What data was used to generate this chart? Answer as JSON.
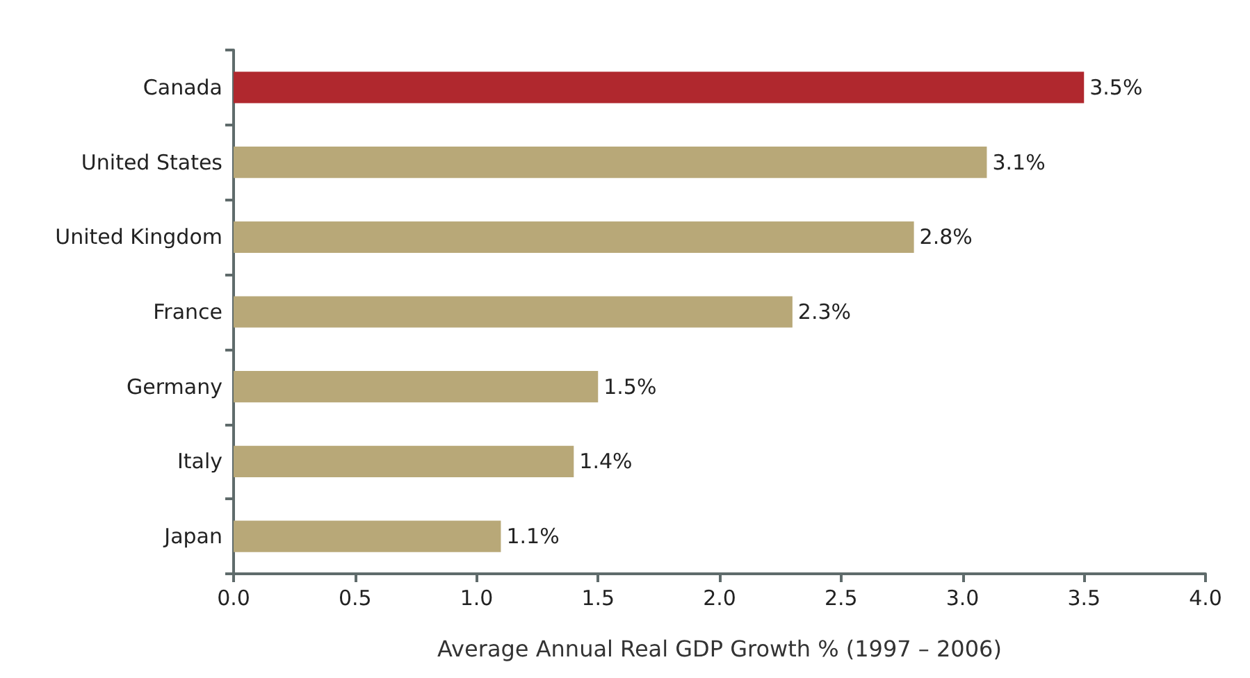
{
  "chart_data": {
    "type": "bar",
    "orientation": "horizontal",
    "xlabel": "Average Annual Real GDP Growth % (1997 – 2006)",
    "categories": [
      "Canada",
      "United States",
      "United Kingdom",
      "France",
      "Germany",
      "Italy",
      "Japan"
    ],
    "values": [
      3.5,
      3.1,
      2.8,
      2.3,
      1.5,
      1.4,
      1.1
    ],
    "colors": [
      "#b0282e",
      "#b8a878",
      "#b8a878",
      "#b8a878",
      "#b8a878",
      "#b8a878",
      "#b8a878"
    ],
    "value_labels": [
      "3.5%",
      "3.1%",
      "2.8%",
      "2.3%",
      "1.5%",
      "1.4%",
      "1.1%"
    ],
    "xlim": [
      0,
      4
    ],
    "xticks": [
      {
        "value": 0,
        "label": "0.0"
      },
      {
        "value": 0.5,
        "label": "0.5"
      },
      {
        "value": 1,
        "label": "1.0"
      },
      {
        "value": 1.5,
        "label": "1.5"
      },
      {
        "value": 2,
        "label": "2.0"
      },
      {
        "value": 2.5,
        "label": "2.5"
      },
      {
        "value": 3,
        "label": "3.0"
      },
      {
        "value": 3.5,
        "label": "3.5"
      },
      {
        "value": 4,
        "label": "4.0"
      }
    ],
    "grid": false
  }
}
